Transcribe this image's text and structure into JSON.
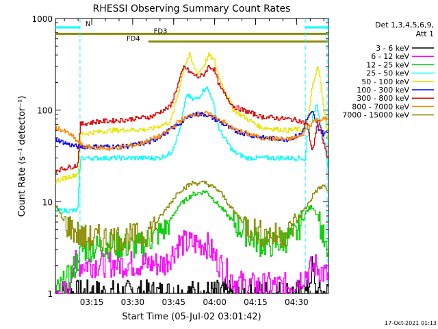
{
  "chart_data": {
    "type": "line",
    "title": "RHESSI Observing Summary Count Rates",
    "xlabel": "Start Time (05-Jul-02 03:01:42)",
    "ylabel": "Count Rate (s⁻¹ detector⁻¹)",
    "yscale": "log",
    "ylim": [
      1,
      1000
    ],
    "xlim_minutes": [
      0,
      100
    ],
    "x_ticks": [
      {
        "label": "03:15",
        "minutes": 13.3
      },
      {
        "label": "03:30",
        "minutes": 28.3
      },
      {
        "label": "03:45",
        "minutes": 43.3
      },
      {
        "label": "04:00",
        "minutes": 58.3
      },
      {
        "label": "04:15",
        "minutes": 73.3
      },
      {
        "label": "04:30",
        "minutes": 88.3
      }
    ],
    "y_ticks": [
      "1",
      "10",
      "100",
      "1000"
    ],
    "legend_header": [
      "Det 1,3,4,5,6,9,",
      "Att 1"
    ],
    "legend_placement": "right",
    "footer_date": "17-Oct-2021 01:13",
    "attenuator_labels": [
      "N",
      "FD3",
      "FD4"
    ],
    "attenuator_bars": [
      {
        "label": "N",
        "color": "#00ffff",
        "y": 800,
        "ranges": [
          [
            0,
            9
          ],
          [
            91.5,
            100
          ]
        ]
      },
      {
        "label": "FD3",
        "color": "#8b8b00",
        "y": 680,
        "ranges": [
          [
            0,
            100
          ]
        ]
      },
      {
        "label": "FD4",
        "color": "#8b8b00",
        "y": 560,
        "ranges": [
          [
            34,
            100
          ]
        ]
      }
    ],
    "markers_minutes": [
      9,
      91.5,
      99.5
    ],
    "series": [
      {
        "name": "3 - 6 keV",
        "color": "#000000",
        "x": [
          0,
          50,
          92,
          94,
          95,
          96,
          100
        ],
        "y": [
          1,
          1,
          1,
          2,
          1,
          1,
          1
        ]
      },
      {
        "name": "6 - 12 keV",
        "color": "#ff00ff",
        "x": [
          0,
          5,
          6,
          30,
          40,
          45,
          50,
          55,
          60,
          65,
          70,
          85,
          90,
          95,
          100
        ],
        "y": [
          1,
          1,
          2.1,
          2.1,
          2.1,
          3.5,
          3.5,
          3.5,
          2.1,
          1.4,
          1.2,
          1.2,
          1.5,
          2,
          1.5
        ]
      },
      {
        "name": "12 - 25 keV",
        "color": "#00cc00",
        "x": [
          0,
          5,
          10,
          20,
          30,
          35,
          40,
          45,
          50,
          55,
          60,
          65,
          70,
          75,
          80,
          85,
          88,
          90,
          92,
          94,
          96,
          98,
          100
        ],
        "y": [
          1,
          1.5,
          3,
          3.4,
          3.2,
          4,
          5,
          9,
          12,
          13,
          9,
          6,
          4.5,
          3.5,
          3.4,
          4,
          4.5,
          6,
          8,
          9,
          7,
          4,
          2
        ]
      },
      {
        "name": "25 - 50 keV",
        "color": "#00ffff",
        "x": [
          0,
          8,
          9,
          15,
          25,
          38,
          42,
          45,
          48,
          50,
          52,
          55,
          57,
          60,
          65,
          70,
          80,
          88,
          90,
          91.5,
          92,
          94,
          95.5,
          97,
          98.5,
          100
        ],
        "y": [
          8,
          8,
          30,
          30,
          30,
          30,
          34,
          55,
          150,
          130,
          135,
          180,
          140,
          60,
          35,
          30,
          30,
          30,
          30,
          28,
          50,
          80,
          120,
          70,
          40,
          20
        ]
      },
      {
        "name": "50 - 100 keV",
        "color": "#e6e600",
        "x": [
          0,
          8,
          9,
          20,
          35,
          42,
          45,
          47,
          49,
          50,
          52,
          54,
          56,
          58,
          60,
          65,
          75,
          85,
          88,
          90,
          92,
          94,
          96,
          98,
          100
        ],
        "y": [
          17,
          20,
          55,
          60,
          62,
          75,
          160,
          300,
          400,
          320,
          250,
          300,
          400,
          350,
          220,
          100,
          65,
          60,
          62,
          60,
          70,
          180,
          300,
          120,
          40
        ]
      },
      {
        "name": "100 - 300 keV",
        "color": "#0000ff",
        "x": [
          0,
          5,
          8,
          15,
          25,
          35,
          45,
          50,
          55,
          60,
          65,
          75,
          85,
          90,
          92,
          94,
          96,
          98,
          100
        ],
        "y": [
          48,
          42,
          40,
          40,
          40,
          45,
          70,
          90,
          90,
          75,
          60,
          50,
          48,
          55,
          80,
          95,
          65,
          55,
          58
        ]
      },
      {
        "name": "300 - 800 keV",
        "color": "#dd0000",
        "x": [
          0,
          8,
          9,
          15,
          25,
          35,
          42,
          45,
          47,
          49,
          52,
          54,
          56,
          58,
          60,
          65,
          75,
          85,
          88,
          90,
          92,
          94,
          96,
          98,
          100
        ],
        "y": [
          22,
          25,
          70,
          75,
          78,
          85,
          110,
          200,
          300,
          260,
          230,
          240,
          300,
          280,
          180,
          110,
          85,
          80,
          78,
          75,
          70,
          35,
          80,
          45,
          28
        ]
      },
      {
        "name": "800 - 7000 keV",
        "color": "#ff8800",
        "x": [
          0,
          5,
          10,
          20,
          30,
          40,
          45,
          50,
          55,
          60,
          65,
          75,
          85,
          90,
          92,
          95,
          100
        ],
        "y": [
          65,
          55,
          40,
          38,
          42,
          55,
          75,
          90,
          92,
          80,
          62,
          50,
          48,
          52,
          65,
          78,
          80
        ]
      },
      {
        "name": "7000 - 15000 keV",
        "color": "#8b8b00",
        "x": [
          0,
          3,
          6,
          8,
          10,
          15,
          25,
          32,
          35,
          40,
          45,
          50,
          55,
          60,
          65,
          70,
          75,
          80,
          85,
          88,
          92,
          95,
          98,
          100
        ],
        "y": [
          9,
          6,
          5,
          4.5,
          4,
          4,
          4,
          4.3,
          5,
          8,
          13,
          16,
          16,
          13,
          8,
          5.5,
          4.5,
          4.2,
          4.5,
          6,
          9,
          13,
          15,
          13
        ]
      }
    ]
  }
}
